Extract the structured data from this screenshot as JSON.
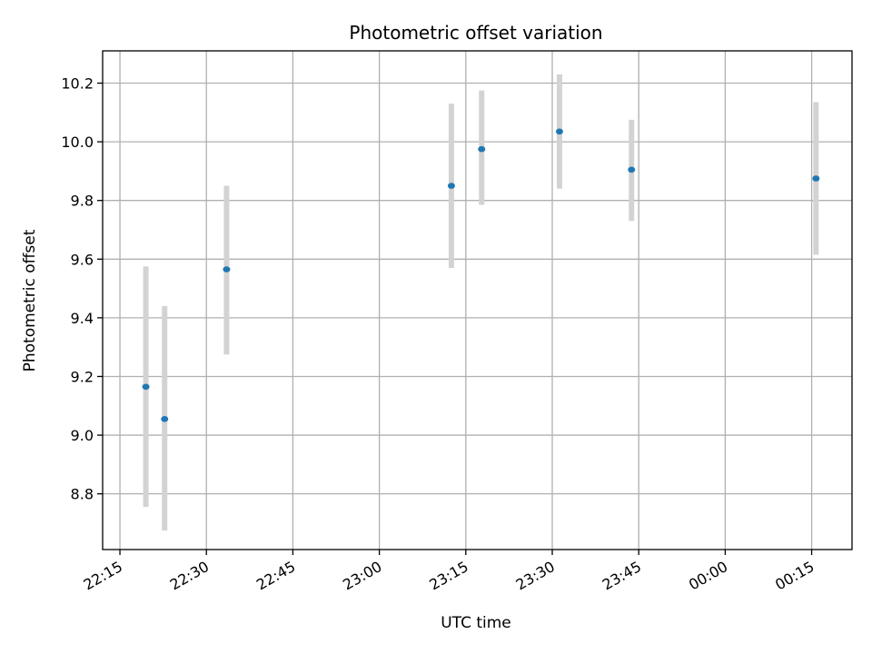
{
  "chart_data": {
    "type": "scatter",
    "title": "Photometric offset variation",
    "xlabel": "UTC time",
    "ylabel": "Photometric offset",
    "x_is_time": true,
    "xlim": [
      "22:12",
      "00:22"
    ],
    "ylim": [
      8.61,
      10.31
    ],
    "x_ticks": [
      "22:15",
      "22:30",
      "22:45",
      "23:00",
      "23:15",
      "23:30",
      "23:45",
      "00:00",
      "00:15"
    ],
    "y_ticks": [
      8.8,
      9.0,
      9.2,
      9.4,
      9.6,
      9.8,
      10.0,
      10.2
    ],
    "y_tick_labels": [
      "8.8",
      "9.0",
      "9.2",
      "9.4",
      "9.6",
      "9.8",
      "10.0",
      "10.2"
    ],
    "grid": true,
    "series": [
      {
        "marker_color": "#1f77b4",
        "errorbar_color": "#d3d3d3",
        "points": [
          {
            "x": "22:19:30",
            "y": 9.165,
            "yerr_low": 8.755,
            "yerr_high": 9.575
          },
          {
            "x": "22:22:45",
            "y": 9.055,
            "yerr_low": 8.675,
            "yerr_high": 9.44
          },
          {
            "x": "22:33:30",
            "y": 9.565,
            "yerr_low": 9.275,
            "yerr_high": 9.85
          },
          {
            "x": "23:12:30",
            "y": 9.85,
            "yerr_low": 9.57,
            "yerr_high": 10.13
          },
          {
            "x": "23:17:45",
            "y": 9.975,
            "yerr_low": 9.785,
            "yerr_high": 10.175
          },
          {
            "x": "23:31:15",
            "y": 10.035,
            "yerr_low": 9.84,
            "yerr_high": 10.23
          },
          {
            "x": "23:43:45",
            "y": 9.905,
            "yerr_low": 9.73,
            "yerr_high": 10.075
          },
          {
            "x": "00:15:45",
            "y": 9.875,
            "yerr_low": 9.615,
            "yerr_high": 10.135
          }
        ]
      }
    ]
  }
}
